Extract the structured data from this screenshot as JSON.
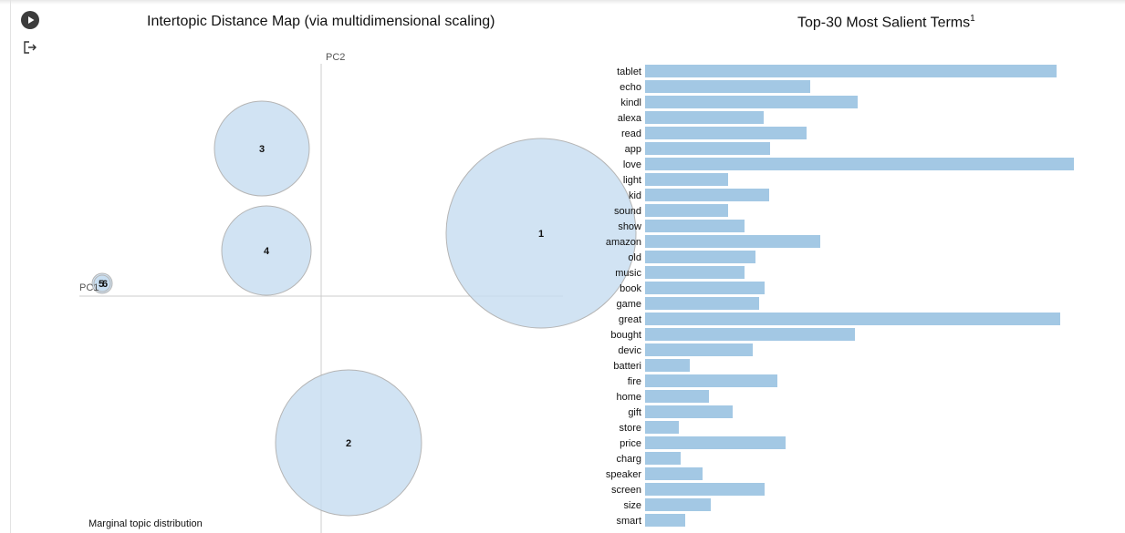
{
  "left_panel": {
    "title": "Intertopic Distance Map (via multidimensional scaling)",
    "pc1_label": "PC1",
    "pc2_label": "PC2",
    "footer_label": "Marginal topic distribution",
    "circle_fill": "#c6dcf0",
    "topics": [
      {
        "id": "1"
      },
      {
        "id": "2"
      },
      {
        "id": "3"
      },
      {
        "id": "4"
      },
      {
        "id": "5"
      },
      {
        "id": "6"
      }
    ]
  },
  "right_panel": {
    "title": "Top-30 Most Salient Terms",
    "title_sup": "1",
    "bar_color": "#a3c8e4"
  },
  "chart_data": {
    "type": "bar",
    "orientation": "horizontal",
    "title": "Top-30 Most Salient Terms",
    "categories": [
      "tablet",
      "echo",
      "kindl",
      "alexa",
      "read",
      "app",
      "love",
      "light",
      "kid",
      "sound",
      "show",
      "amazon",
      "old",
      "music",
      "book",
      "game",
      "great",
      "bought",
      "devic",
      "batteri",
      "fire",
      "home",
      "gift",
      "store",
      "price",
      "charg",
      "speaker",
      "screen",
      "size",
      "smart"
    ],
    "values": [
      451,
      181,
      233,
      130,
      177,
      137,
      470,
      91,
      136,
      91,
      109,
      192,
      121,
      109,
      131,
      125,
      455,
      230,
      118,
      49,
      145,
      70,
      96,
      37,
      154,
      39,
      63,
      131,
      72,
      44
    ],
    "xlim": [
      0,
      470
    ]
  }
}
